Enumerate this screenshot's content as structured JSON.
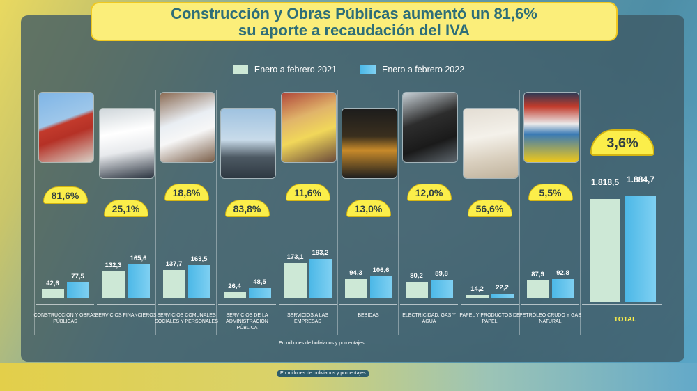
{
  "title": {
    "line1": "Construcción y Obras Públicas aumentó un 81,6%",
    "line2": "su aporte a recaudación del IVA"
  },
  "legend": [
    {
      "label": "Enero a febrero 2021",
      "color": "#cde8d6"
    },
    {
      "label": "Enero a febrero 2022",
      "color": "#5ec2ee"
    }
  ],
  "colors": {
    "series_2021": "#cde8d6",
    "series_2022": "#5ec2ee",
    "badge": "#fbee4a",
    "title_text": "#2e6e78",
    "title_bg": "#fbee7a",
    "total_label": "#fbee4a"
  },
  "chart_data": {
    "type": "bar",
    "title": "Construcción y Obras Públicas aumentó un 81,6% su aporte a recaudación del IVA",
    "categories": [
      "Construcción y Obras Públicas",
      "Servicios Financieros",
      "Servicios Comunales Sociales y Personales",
      "Servicios de la Administración Pública",
      "Servicios a las Empresas",
      "Bebidas",
      "Electricidad, Gas y Agua",
      "Papel y Productos de Papel",
      "Petróleo Crudo y Gas Natural"
    ],
    "series": [
      {
        "name": "Enero a febrero 2021",
        "values": [
          42.6,
          132.3,
          137.7,
          26.4,
          173.1,
          94.3,
          80.2,
          14.2,
          87.9
        ]
      },
      {
        "name": "Enero a febrero 2022",
        "values": [
          77.5,
          165.6,
          163.5,
          48.5,
          193.2,
          106.6,
          89.8,
          22.2,
          92.8
        ]
      }
    ],
    "value_labels": {
      "2021": [
        "42,6",
        "132,3",
        "137,7",
        "26,4",
        "173,1",
        "94,3",
        "80,2",
        "14,2",
        "87,9"
      ],
      "2022": [
        "77,5",
        "165,6",
        "163,5",
        "48,5",
        "193,2",
        "106,6",
        "89,8",
        "22,2",
        "92,8"
      ]
    },
    "growth_percent": [
      81.6,
      25.1,
      18.8,
      83.8,
      11.6,
      13.0,
      12.0,
      56.6,
      5.5
    ],
    "growth_labels": [
      "81,6%",
      "25,1%",
      "18,8%",
      "83,8%",
      "11,6%",
      "13,0%",
      "12,0%",
      "56,6%",
      "5,5%"
    ],
    "category_labels": [
      "CONSTRUCCIÓN Y OBRAS PÚBLICAS",
      "SERVICIOS FINANCIEROS",
      "SERVICIOS COMUNALES SOCIALES Y PERSONALES",
      "SERVICIOS DE LA ADMINISTRACIÓN PÚBLICA",
      "SERVICIOS A LAS EMPRESAS",
      "BEBIDAS",
      "ELECTRICIDAD, GAS Y AGUA",
      "PAPEL Y PRODUCTOS DE PAPEL",
      "PETRÓLEO CRUDO Y GAS NATURAL"
    ],
    "total": {
      "label": "TOTAL",
      "values": [
        1818.5,
        1884.7
      ],
      "value_labels": [
        "1.818,5",
        "1.884,7"
      ],
      "growth_percent": 3.6,
      "growth_label": "3,6%"
    },
    "note": "En millones de bolivianos y porcentajes",
    "grid": false,
    "legend_position": "top-center"
  },
  "photos": [
    {
      "icon": "construction-crane-photo"
    },
    {
      "icon": "financial-documents-photo"
    },
    {
      "icon": "health-services-photo"
    },
    {
      "icon": "cable-car-tower-photo"
    },
    {
      "icon": "supermarket-shelves-photo"
    },
    {
      "icon": "beverage-bottle-photo"
    },
    {
      "icon": "electric-worker-photo"
    },
    {
      "icon": "paper-stack-photo"
    },
    {
      "icon": "gas-station-photo"
    }
  ],
  "footer": {
    "source_note": "En millones de bolivianos y porcentajes",
    "pill_note": "En millones de bolivianos y porcentajes"
  }
}
